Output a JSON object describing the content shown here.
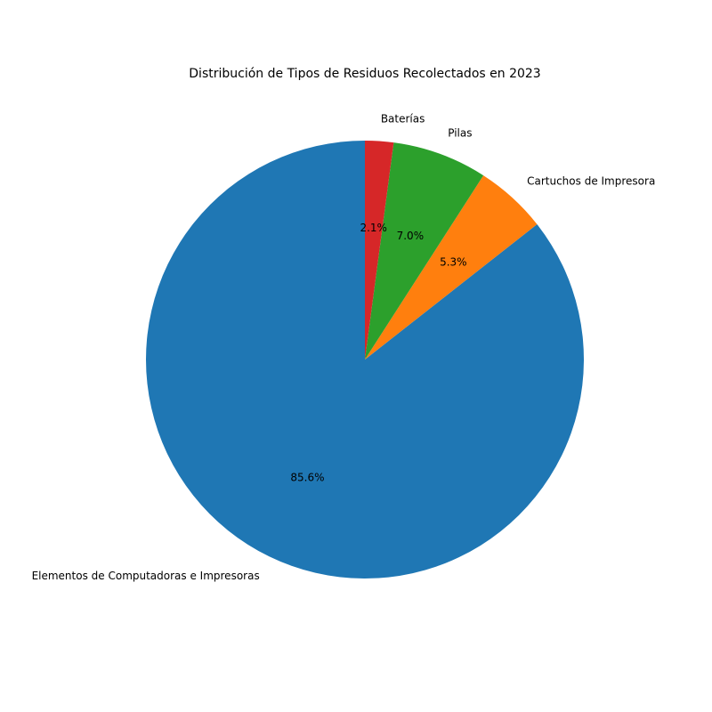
{
  "chart_data": {
    "type": "pie",
    "title": "Distribución de Tipos de Residuos Recolectados en 2023",
    "categories": [
      "Elementos de Computadoras e Impresoras",
      "Cartuchos de Impresora",
      "Pilas",
      "Baterías"
    ],
    "values": [
      85.6,
      5.3,
      7.0,
      2.1
    ],
    "value_labels": [
      "85.6%",
      "5.3%",
      "7.0%",
      "2.1%"
    ],
    "colors": [
      "#1f77b4",
      "#ff7f0e",
      "#2ca02c",
      "#d62728"
    ]
  }
}
